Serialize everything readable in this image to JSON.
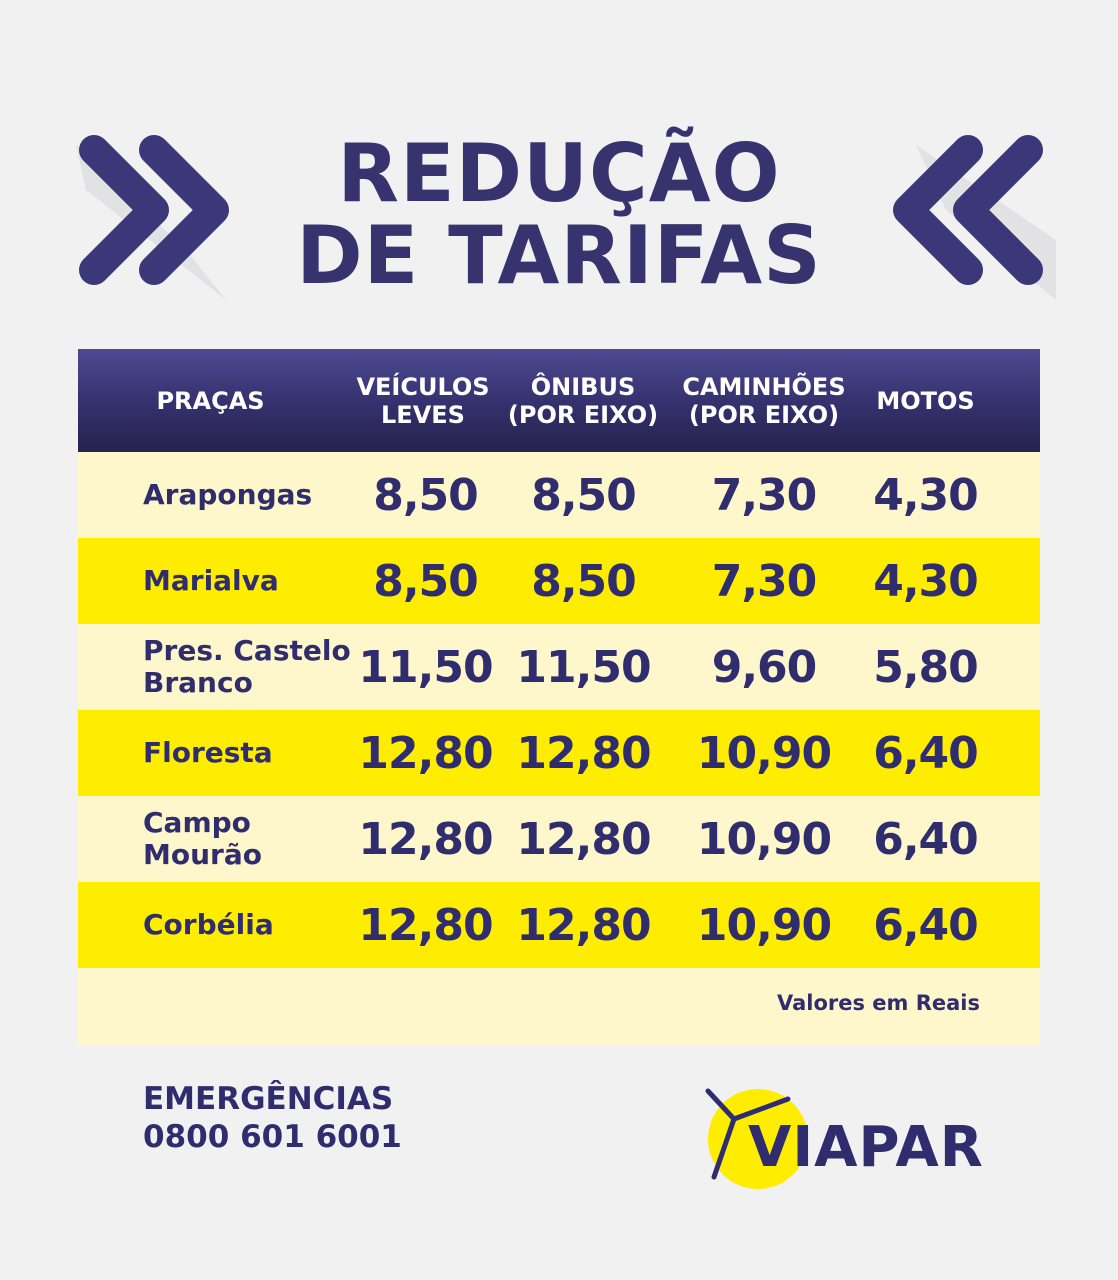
{
  "title": {
    "line1": "REDUÇÃO",
    "line2": "DE TARIFAS"
  },
  "table": {
    "headers": [
      "PRAÇAS",
      "VEÍCULOS\nLEVES",
      "ÔNIBUS\n(POR EIXO)",
      "CAMINHÕES\n(POR EIXO)",
      "MOTOS"
    ],
    "rows": [
      {
        "name": "Arapongas",
        "values": [
          "8,50",
          "8,50",
          "7,30",
          "4,30"
        ]
      },
      {
        "name": "Marialva",
        "values": [
          "8,50",
          "8,50",
          "7,30",
          "4,30"
        ]
      },
      {
        "name": "Pres. Castelo\nBranco",
        "values": [
          "11,50",
          "11,50",
          "9,60",
          "5,80"
        ]
      },
      {
        "name": "Floresta",
        "values": [
          "12,80",
          "12,80",
          "10,90",
          "6,40"
        ]
      },
      {
        "name": "Campo\nMourão",
        "values": [
          "12,80",
          "12,80",
          "10,90",
          "6,40"
        ]
      },
      {
        "name": "Corbélia",
        "values": [
          "12,80",
          "12,80",
          "10,90",
          "6,40"
        ]
      }
    ],
    "note": "Valores em Reais"
  },
  "emergency": {
    "label": "EMERGÊNCIAS",
    "phone": "0800 601 6001"
  },
  "logo": {
    "text": "VIAPAR"
  },
  "colors": {
    "navy": "#2f2d6e",
    "yellow": "#ffed00",
    "light_yellow": "#fff7cc",
    "background": "#f1f1f2"
  },
  "icons": [
    "double-chevron-right-icon",
    "double-chevron-left-icon",
    "viapar-logo-icon"
  ]
}
